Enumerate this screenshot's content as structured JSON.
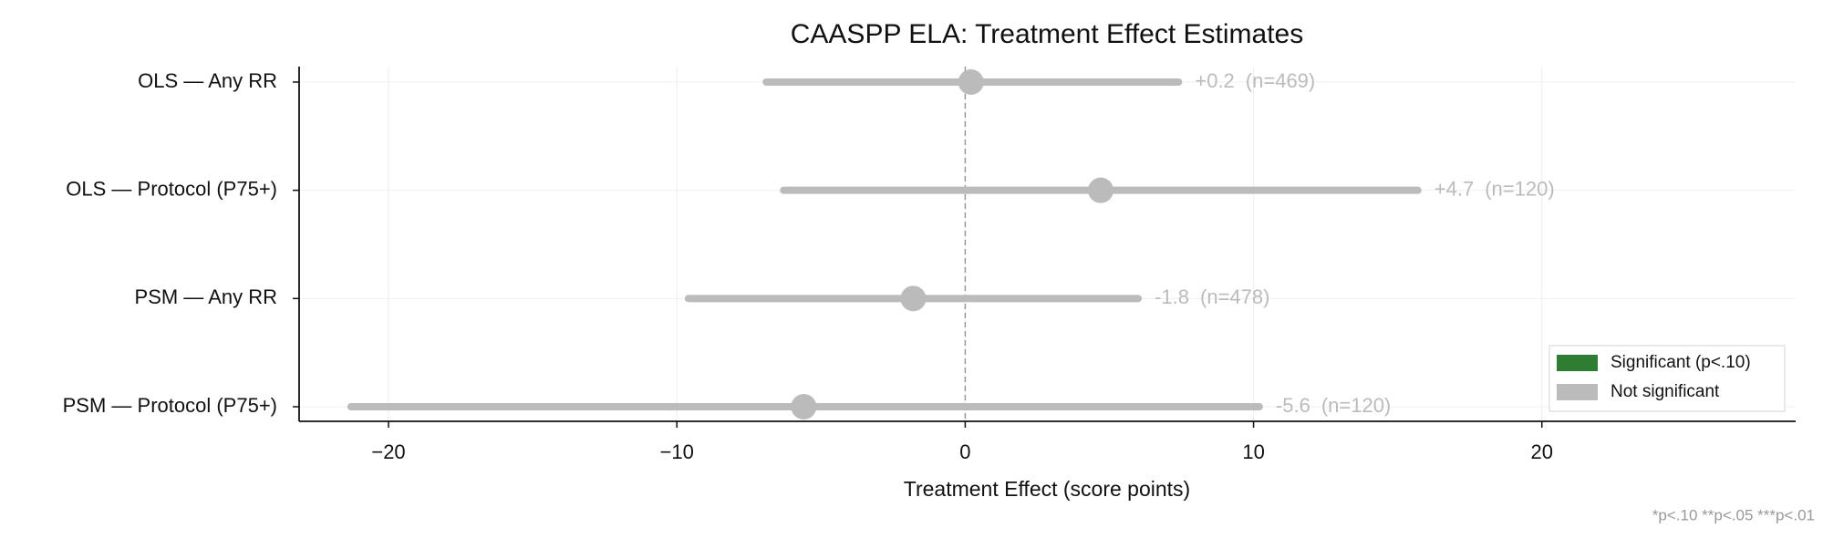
{
  "chart_data": {
    "type": "forest",
    "title": "CAASPP ELA: Treatment Effect Estimates",
    "x_label": "Treatment Effect (score points)",
    "categories": [
      "OLS — Any RR",
      "OLS — Protocol (P75+)",
      "PSM — Any RR",
      "PSM — Protocol (P75+)"
    ],
    "values": [
      0.2,
      4.7,
      -1.8,
      -5.6
    ],
    "value_labels": [
      "+0.2",
      "+4.7",
      "-1.8",
      "-5.6"
    ],
    "ci_low": [
      -6.9,
      -6.3,
      -9.6,
      -21.3
    ],
    "ci_high": [
      7.4,
      15.7,
      6.0,
      10.2
    ],
    "n_labels": [
      "(n=469)",
      "(n=120)",
      "(n=478)",
      "(n=120)"
    ],
    "significant": [
      false,
      false,
      false,
      false
    ],
    "xlim": [
      -23.1,
      28.8
    ],
    "xticks": [
      {
        "value": -20,
        "label": "−20"
      },
      {
        "value": -10,
        "label": "−10"
      },
      0,
      10,
      20
    ],
    "reference_line": 0,
    "grid": true,
    "legend": {
      "position": "lower right",
      "entries": [
        {
          "name": "Significant (p<.10)",
          "color": "#2e7d32"
        },
        {
          "name": "Not significant",
          "color": "#bbbbbb"
        }
      ]
    },
    "footnote": "*p<.10  **p<.05  ***p<.01"
  }
}
